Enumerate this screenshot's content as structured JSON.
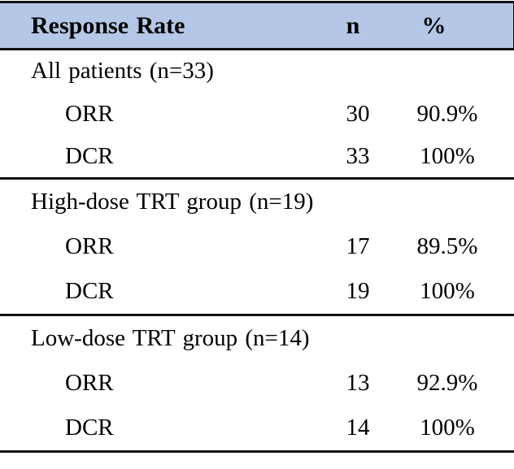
{
  "table": {
    "header": {
      "label": "Response Rate",
      "n": "n",
      "pct": "%"
    },
    "sections": [
      {
        "group": "All patients (n=33)",
        "rows": [
          {
            "label": "ORR",
            "n": "30",
            "pct": "90.9%"
          },
          {
            "label": "DCR",
            "n": "33",
            "pct": "100%"
          }
        ]
      },
      {
        "group": "High-dose TRT group (n=19)",
        "rows": [
          {
            "label": "ORR",
            "n": "17",
            "pct": "89.5%"
          },
          {
            "label": "DCR",
            "n": "19",
            "pct": "100%"
          }
        ]
      },
      {
        "group": "Low-dose TRT group (n=14)",
        "rows": [
          {
            "label": "ORR",
            "n": "13",
            "pct": "92.9%"
          },
          {
            "label": "DCR",
            "n": "14",
            "pct": "100%"
          }
        ]
      }
    ],
    "colors": {
      "header_bg": "#b4c7e6",
      "border": "#111111",
      "text": "#000000"
    }
  }
}
